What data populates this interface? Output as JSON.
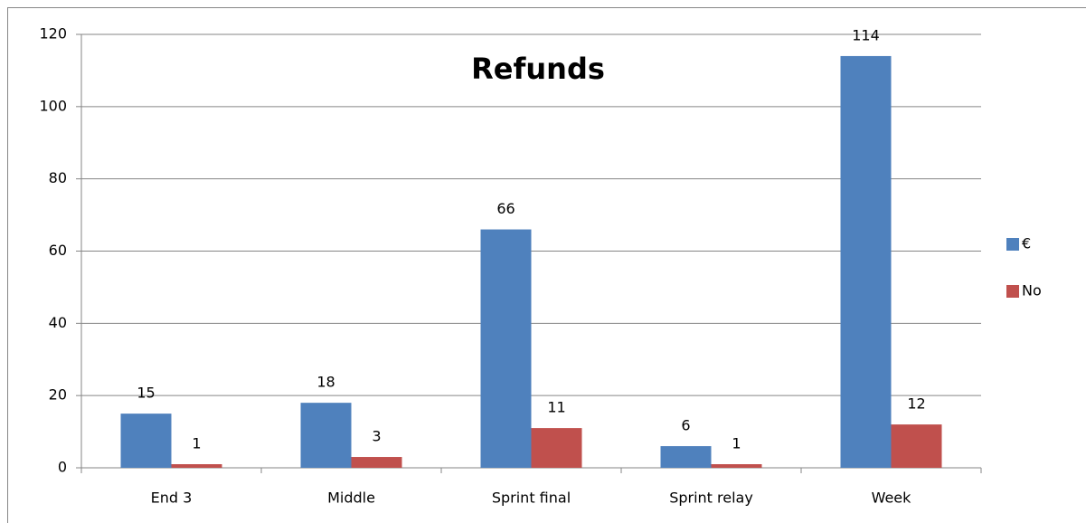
{
  "chart_data": {
    "type": "bar",
    "title": "Refunds",
    "categories": [
      "End 3",
      "Middle",
      "Sprint final",
      "Sprint relay",
      "Week"
    ],
    "series": [
      {
        "name": "€",
        "color": "#4f81bd",
        "values": [
          15,
          18,
          66,
          6,
          114
        ]
      },
      {
        "name": "No",
        "color": "#c0504d",
        "values": [
          1,
          3,
          11,
          1,
          12
        ]
      }
    ],
    "ylim": [
      0,
      120
    ],
    "yticks": [
      0,
      20,
      40,
      60,
      80,
      100,
      120
    ],
    "grid": true,
    "legend": "right"
  }
}
